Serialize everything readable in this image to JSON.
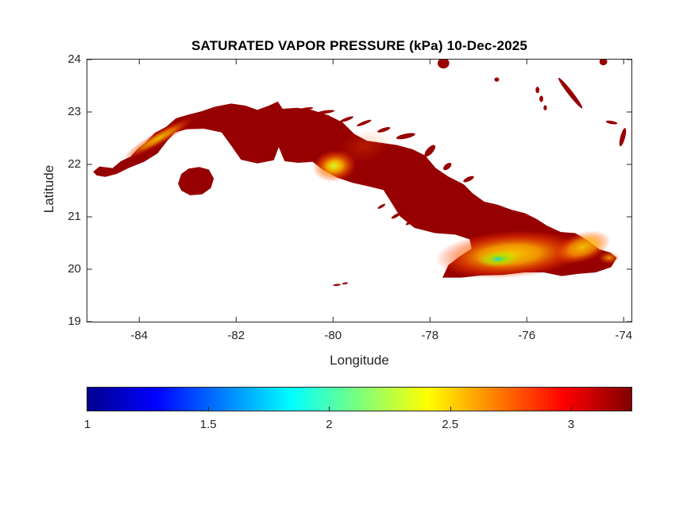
{
  "chart_data": {
    "type": "heatmap",
    "title": "SATURATED VAPOR PRESSURE (kPa) 10-Dec-2025",
    "variable": "Saturated vapor pressure",
    "units": "kPa",
    "date": "10-Dec-2025",
    "xlabel": "Longitude",
    "ylabel": "Latitude",
    "xlim": [
      -85.07,
      -73.84
    ],
    "ylim": [
      19,
      24
    ],
    "xticks": [
      -84,
      -82,
      -80,
      -78,
      -76,
      -74
    ],
    "yticks": [
      19,
      20,
      21,
      22,
      23,
      24
    ],
    "grid": false,
    "sea_color": "#ffffff",
    "axis_color": "#262626",
    "land_base_value_kPa": 3.15,
    "land_color": "#970000",
    "colorbar": {
      "orientation": "horizontal",
      "position": "below-axes",
      "min": 1,
      "max": 3.25,
      "ticks": [
        1,
        1.5,
        2,
        2.5,
        3
      ],
      "colormap": "jet",
      "stops": [
        [
          0,
          "#00008f"
        ],
        [
          0.125,
          "#0000ff"
        ],
        [
          0.375,
          "#00ffff"
        ],
        [
          0.5,
          "#7dff7a"
        ],
        [
          0.625,
          "#ffff00"
        ],
        [
          0.875,
          "#ff0000"
        ],
        [
          1,
          "#800000"
        ]
      ]
    },
    "regions": {
      "mainland": [
        [
          -84.95,
          21.86
        ],
        [
          -84.82,
          21.96
        ],
        [
          -84.55,
          21.93
        ],
        [
          -84.38,
          22.06
        ],
        [
          -84.18,
          22.15
        ],
        [
          -84.03,
          22.3
        ],
        [
          -83.88,
          22.41
        ],
        [
          -83.68,
          22.6
        ],
        [
          -83.44,
          22.72
        ],
        [
          -83.24,
          22.88
        ],
        [
          -82.98,
          22.95
        ],
        [
          -82.72,
          23.01
        ],
        [
          -82.44,
          23.1
        ],
        [
          -82.1,
          23.16
        ],
        [
          -81.8,
          23.12
        ],
        [
          -81.56,
          23.04
        ],
        [
          -81.3,
          23.13
        ],
        [
          -81.14,
          23.2
        ],
        [
          -81.04,
          23.06
        ],
        [
          -80.74,
          23.08
        ],
        [
          -80.44,
          23.04
        ],
        [
          -80.1,
          22.94
        ],
        [
          -79.8,
          22.8
        ],
        [
          -79.56,
          22.58
        ],
        [
          -79.3,
          22.45
        ],
        [
          -79.0,
          22.41
        ],
        [
          -78.68,
          22.37
        ],
        [
          -78.36,
          22.29
        ],
        [
          -78.1,
          22.17
        ],
        [
          -77.88,
          21.93
        ],
        [
          -77.62,
          21.77
        ],
        [
          -77.3,
          21.62
        ],
        [
          -77.12,
          21.45
        ],
        [
          -76.88,
          21.29
        ],
        [
          -76.6,
          21.23
        ],
        [
          -76.3,
          21.13
        ],
        [
          -76.04,
          21.07
        ],
        [
          -75.8,
          20.96
        ],
        [
          -75.58,
          20.83
        ],
        [
          -75.3,
          20.71
        ],
        [
          -75.0,
          20.69
        ],
        [
          -74.76,
          20.56
        ],
        [
          -74.5,
          20.38
        ],
        [
          -74.28,
          20.32
        ],
        [
          -74.14,
          20.22
        ],
        [
          -74.26,
          20.04
        ],
        [
          -74.58,
          19.94
        ],
        [
          -74.95,
          19.91
        ],
        [
          -75.28,
          19.87
        ],
        [
          -75.65,
          19.94
        ],
        [
          -76.05,
          19.94
        ],
        [
          -76.5,
          19.89
        ],
        [
          -76.95,
          19.88
        ],
        [
          -77.36,
          19.84
        ],
        [
          -77.74,
          19.84
        ],
        [
          -77.62,
          20.08
        ],
        [
          -77.38,
          20.25
        ],
        [
          -77.14,
          20.39
        ],
        [
          -77.18,
          20.57
        ],
        [
          -77.48,
          20.66
        ],
        [
          -77.9,
          20.69
        ],
        [
          -78.32,
          20.79
        ],
        [
          -78.62,
          21.01
        ],
        [
          -78.82,
          21.31
        ],
        [
          -78.96,
          21.51
        ],
        [
          -79.26,
          21.58
        ],
        [
          -79.6,
          21.65
        ],
        [
          -79.92,
          21.75
        ],
        [
          -80.2,
          21.89
        ],
        [
          -80.42,
          22.05
        ],
        [
          -80.72,
          22.03
        ],
        [
          -81.0,
          22.06
        ],
        [
          -81.12,
          22.33
        ],
        [
          -81.22,
          22.08
        ],
        [
          -81.56,
          22.02
        ],
        [
          -81.9,
          22.09
        ],
        [
          -82.08,
          22.33
        ],
        [
          -82.3,
          22.61
        ],
        [
          -82.66,
          22.68
        ],
        [
          -83.02,
          22.67
        ],
        [
          -83.26,
          22.61
        ],
        [
          -83.42,
          22.45
        ],
        [
          -83.62,
          22.21
        ],
        [
          -83.9,
          22.05
        ],
        [
          -84.22,
          21.93
        ],
        [
          -84.46,
          21.82
        ],
        [
          -84.7,
          21.76
        ],
        [
          -84.88,
          21.79
        ]
      ],
      "isla_de_la_juventud": [
        [
          -83.2,
          21.63
        ],
        [
          -83.13,
          21.82
        ],
        [
          -82.98,
          21.92
        ],
        [
          -82.76,
          21.95
        ],
        [
          -82.56,
          21.9
        ],
        [
          -82.46,
          21.73
        ],
        [
          -82.52,
          21.55
        ],
        [
          -82.7,
          21.43
        ],
        [
          -82.95,
          21.41
        ],
        [
          -83.13,
          21.5
        ]
      ],
      "islets": [
        [
          -80.55,
          23.06,
          0.14,
          0.025,
          -8
        ],
        [
          -80.15,
          23.0,
          0.18,
          0.03,
          -8
        ],
        [
          -79.72,
          22.86,
          0.15,
          0.03,
          -20
        ],
        [
          -79.36,
          22.79,
          0.16,
          0.03,
          -22
        ],
        [
          -78.95,
          22.66,
          0.14,
          0.035,
          -18
        ],
        [
          -78.5,
          22.54,
          0.2,
          0.045,
          -12
        ],
        [
          -78.0,
          22.26,
          0.15,
          0.06,
          -48
        ],
        [
          -77.64,
          21.96,
          0.1,
          0.05,
          -40
        ],
        [
          -77.2,
          21.72,
          0.12,
          0.04,
          -25
        ],
        [
          -79.0,
          21.2,
          0.09,
          0.025,
          -30
        ],
        [
          -78.7,
          21.02,
          0.11,
          0.03,
          -30
        ],
        [
          -78.42,
          20.89,
          0.09,
          0.025,
          -30
        ],
        [
          -79.92,
          19.7,
          0.08,
          0.018,
          -5
        ],
        [
          -79.75,
          19.73,
          0.06,
          0.018,
          -10
        ],
        [
          -77.72,
          23.93,
          0.12,
          0.1,
          0
        ],
        [
          -76.62,
          23.62,
          0.05,
          0.04,
          0
        ],
        [
          -75.78,
          23.42,
          0.04,
          0.06,
          0
        ],
        [
          -75.7,
          23.25,
          0.04,
          0.06,
          0
        ],
        [
          -75.62,
          23.08,
          0.035,
          0.05,
          0
        ],
        [
          -75.1,
          23.36,
          0.4,
          0.045,
          52
        ],
        [
          -74.25,
          22.8,
          0.12,
          0.03,
          10
        ],
        [
          -74.02,
          22.52,
          0.05,
          0.18,
          15
        ],
        [
          -74.42,
          23.96,
          0.08,
          0.07,
          0
        ]
      ]
    },
    "hotspots": [
      {
        "name": "cordillera-guaniguanico",
        "value_kPa": 2.6,
        "cx": -83.6,
        "cy": 22.5,
        "rx": 0.85,
        "ry": 0.13,
        "rot": -30,
        "stops": [
          [
            0,
            "#ffdf00",
            0.85
          ],
          [
            0.45,
            "#ffa000",
            0.65
          ],
          [
            0.75,
            "#e84000",
            0.35
          ],
          [
            1,
            "#e84000",
            0
          ]
        ]
      },
      {
        "name": "escambray",
        "value_kPa": 2.3,
        "cx": -79.97,
        "cy": 21.97,
        "rx": 0.45,
        "ry": 0.3,
        "rot": -8,
        "stops": [
          [
            0,
            "#fff200",
            0.95
          ],
          [
            0.35,
            "#ffc400",
            0.85
          ],
          [
            0.65,
            "#ff6a00",
            0.55
          ],
          [
            1,
            "#ff3c00",
            0
          ]
        ]
      },
      {
        "name": "escambray-core",
        "value_kPa": 2.1,
        "cx": -80.0,
        "cy": 21.97,
        "rx": 0.12,
        "ry": 0.08,
        "rot": 0,
        "stops": [
          [
            0,
            "#c8ef2a",
            0.9
          ],
          [
            1,
            "#c8ef2a",
            0
          ]
        ]
      },
      {
        "name": "central-hills-faint",
        "value_kPa": 2.9,
        "cx": -79.35,
        "cy": 22.35,
        "rx": 0.55,
        "ry": 0.3,
        "rot": -15,
        "stops": [
          [
            0,
            "#ff5a00",
            0.28
          ],
          [
            1,
            "#ff5a00",
            0
          ]
        ]
      },
      {
        "name": "sierra-maestra-oriente",
        "value_kPa": 2.4,
        "cx": -76.35,
        "cy": 20.28,
        "rx": 1.55,
        "ry": 0.45,
        "rot": -4,
        "stops": [
          [
            0,
            "#ffd400",
            0.95
          ],
          [
            0.4,
            "#ffae00",
            0.85
          ],
          [
            0.72,
            "#ff5000",
            0.5
          ],
          [
            1,
            "#ff3000",
            0
          ]
        ]
      },
      {
        "name": "pico-turquino-green",
        "value_kPa": 1.9,
        "cx": -76.58,
        "cy": 20.2,
        "rx": 0.45,
        "ry": 0.15,
        "rot": -4,
        "stops": [
          [
            0,
            "#3fe06a",
            0.9
          ],
          [
            0.5,
            "#b0e800",
            0.7
          ],
          [
            1,
            "#b0e800",
            0
          ]
        ]
      },
      {
        "name": "turquino-peak-cyan",
        "value_kPa": 1.6,
        "cx": -76.6,
        "cy": 20.19,
        "rx": 0.11,
        "ry": 0.05,
        "rot": 0,
        "stops": [
          [
            0,
            "#20e0c8",
            0.9
          ],
          [
            1,
            "#20e0c8",
            0
          ]
        ]
      },
      {
        "name": "sagua-baracoa",
        "value_kPa": 2.4,
        "cx": -74.85,
        "cy": 20.42,
        "rx": 0.6,
        "ry": 0.28,
        "rot": -18,
        "stops": [
          [
            0,
            "#ffd400",
            0.9
          ],
          [
            0.5,
            "#ff9c00",
            0.75
          ],
          [
            1,
            "#ff4000",
            0
          ]
        ]
      },
      {
        "name": "maisi-tip",
        "value_kPa": 2.7,
        "cx": -74.3,
        "cy": 20.22,
        "rx": 0.22,
        "ry": 0.12,
        "rot": 0,
        "stops": [
          [
            0,
            "#ffc400",
            0.8
          ],
          [
            1,
            "#ff6000",
            0
          ]
        ]
      }
    ]
  }
}
